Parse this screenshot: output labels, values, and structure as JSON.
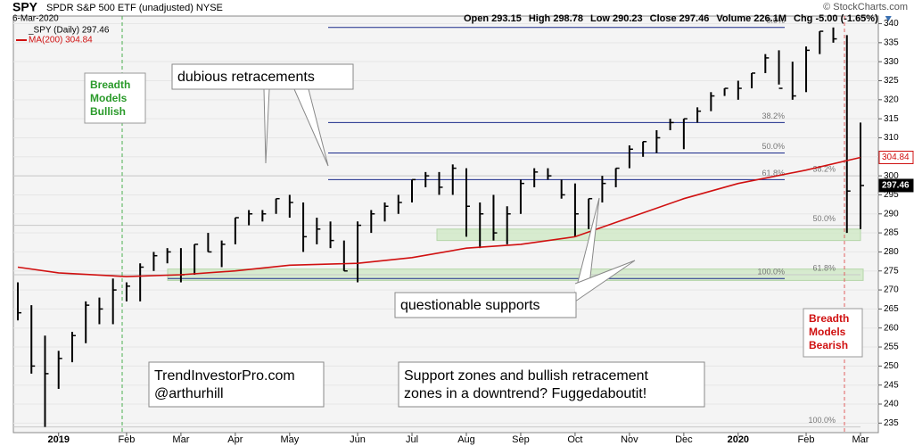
{
  "chart_data": {
    "type": "ohlc",
    "symbol": "SPY",
    "description": "SPDR S&P 500 ETF (unadjusted) NYSE",
    "copyright": "© StockCharts.com",
    "date": "6-Mar-2020",
    "quote": [
      "Open 293.15",
      "High 298.78",
      "Low 290.23",
      "Close 297.46",
      "Volume 226.1M",
      "Chg -5.00 (-1.65%)"
    ],
    "legend_price": "_SPY (Daily) 297.46",
    "legend_ma": "MA(200) 304.84",
    "price_color": "#000000",
    "ma_color": "#d01010",
    "ylim": [
      232.5,
      342
    ],
    "yticks": [
      235,
      240,
      245,
      250,
      255,
      260,
      265,
      270,
      275,
      280,
      285,
      290,
      295,
      300,
      305,
      310,
      315,
      320,
      325,
      330,
      335,
      340
    ],
    "months": [
      {
        "label": null,
        "ma200": 276,
        "bars": [
          [
            272,
            262,
            264
          ],
          [
            266,
            248,
            250
          ],
          [
            258,
            234,
            248
          ]
        ]
      },
      {
        "label": "2019",
        "ma200": 274.5,
        "bars": [
          [
            254,
            244,
            252
          ],
          [
            259,
            251,
            258
          ],
          [
            267,
            256,
            266
          ],
          [
            268,
            261,
            265
          ],
          [
            273,
            261,
            270
          ]
        ]
      },
      {
        "label": "Feb",
        "ma200": 273.5,
        "bars": [
          [
            272,
            267,
            271
          ],
          [
            277,
            267,
            276
          ],
          [
            280,
            275,
            279
          ],
          [
            281,
            277,
            280
          ]
        ]
      },
      {
        "label": "Mar",
        "ma200": 274,
        "bars": [
          [
            281,
            272,
            274
          ],
          [
            282,
            274,
            282
          ],
          [
            285,
            280,
            280
          ],
          [
            283,
            276,
            282
          ]
        ]
      },
      {
        "label": "Apr",
        "ma200": 275,
        "bars": [
          [
            289,
            282,
            289
          ],
          [
            291,
            287,
            290
          ],
          [
            291,
            288,
            290
          ],
          [
            294,
            290,
            294
          ]
        ]
      },
      {
        "label": "May",
        "ma200": 276.5,
        "bars": [
          [
            295,
            289,
            293
          ],
          [
            293,
            280,
            284
          ],
          [
            289,
            282,
            286
          ],
          [
            288,
            281,
            283
          ],
          [
            283,
            275,
            275
          ]
        ]
      },
      {
        "label": "Jun",
        "ma200": 277,
        "bars": [
          [
            288,
            272,
            287
          ],
          [
            291,
            285,
            290
          ],
          [
            293,
            288,
            292
          ],
          [
            295,
            290,
            293
          ]
        ]
      },
      {
        "label": "Jul",
        "ma200": 278.5,
        "bars": [
          [
            299,
            293,
            299
          ],
          [
            301,
            297,
            300
          ],
          [
            301,
            295,
            297
          ],
          [
            303,
            295,
            302
          ]
        ]
      },
      {
        "label": "Aug",
        "ma200": 281,
        "bars": [
          [
            302,
            284,
            292
          ],
          [
            293,
            281,
            290
          ],
          [
            295,
            283,
            285
          ],
          [
            292,
            282,
            290
          ]
        ]
      },
      {
        "label": "Sep",
        "ma200": 282,
        "bars": [
          [
            299,
            290,
            298
          ],
          [
            302,
            297,
            301
          ],
          [
            302,
            299,
            300
          ],
          [
            299,
            294,
            295
          ]
        ]
      },
      {
        "label": "Oct",
        "ma200": 284,
        "bars": [
          [
            298,
            284,
            290
          ],
          [
            294,
            286,
            294
          ],
          [
            300,
            293,
            298
          ],
          [
            302,
            297,
            302
          ]
        ]
      },
      {
        "label": "Nov",
        "ma200": 289,
        "bars": [
          [
            308,
            302,
            307
          ],
          [
            309,
            305,
            309
          ],
          [
            312,
            306,
            310
          ],
          [
            315,
            312,
            314
          ]
        ]
      },
      {
        "label": "Dec",
        "ma200": 294,
        "bars": [
          [
            315,
            307,
            315
          ],
          [
            318,
            314,
            317
          ],
          [
            322,
            317,
            321
          ],
          [
            323,
            321,
            323
          ]
        ]
      },
      {
        "label": "2020",
        "ma200": 298,
        "bars": [
          [
            325,
            320,
            323
          ],
          [
            327,
            323,
            327
          ],
          [
            332,
            327,
            331
          ],
          [
            333,
            324,
            323
          ],
          [
            330,
            320,
            321
          ]
        ]
      },
      {
        "label": "Feb",
        "ma200": 301.5,
        "bars": [
          [
            334,
            322,
            333
          ],
          [
            338,
            332,
            338
          ],
          [
            339,
            335,
            336
          ],
          [
            337,
            285,
            296
          ]
        ]
      },
      {
        "label": "Mar",
        "ma200": 304.84,
        "bars": [
          [
            314,
            286,
            297.46
          ]
        ]
      }
    ],
    "fib_lines": [
      {
        "value": 339,
        "label": "0.0%"
      },
      {
        "value": 314,
        "label": "38.2%"
      },
      {
        "value": 306,
        "label": "50.0%"
      },
      {
        "value": 299,
        "label": "61.8%"
      },
      {
        "value": 273,
        "label": "100.0%"
      },
      {
        "value": 300,
        "label": "38.2%"
      },
      {
        "value": 287,
        "label": "50.0%"
      },
      {
        "value": 274,
        "label": "61.8%"
      },
      {
        "value": 234,
        "label": "100.0%"
      }
    ],
    "support_zones": [
      {
        "low": 283,
        "high": 286
      },
      {
        "low": 272.5,
        "high": 275.5
      }
    ],
    "annotations": {
      "bullish": "Breadth Models Bullish",
      "bearish": "Breadth Models Bearish",
      "dubious": "dubious retracements",
      "supports": "questionable supports",
      "site": "TrendInvestorPro.com",
      "author": "@arthurhill",
      "note": "Support zones and bullish retracement zones in a downtrend? Fuggedaboutit!"
    }
  }
}
